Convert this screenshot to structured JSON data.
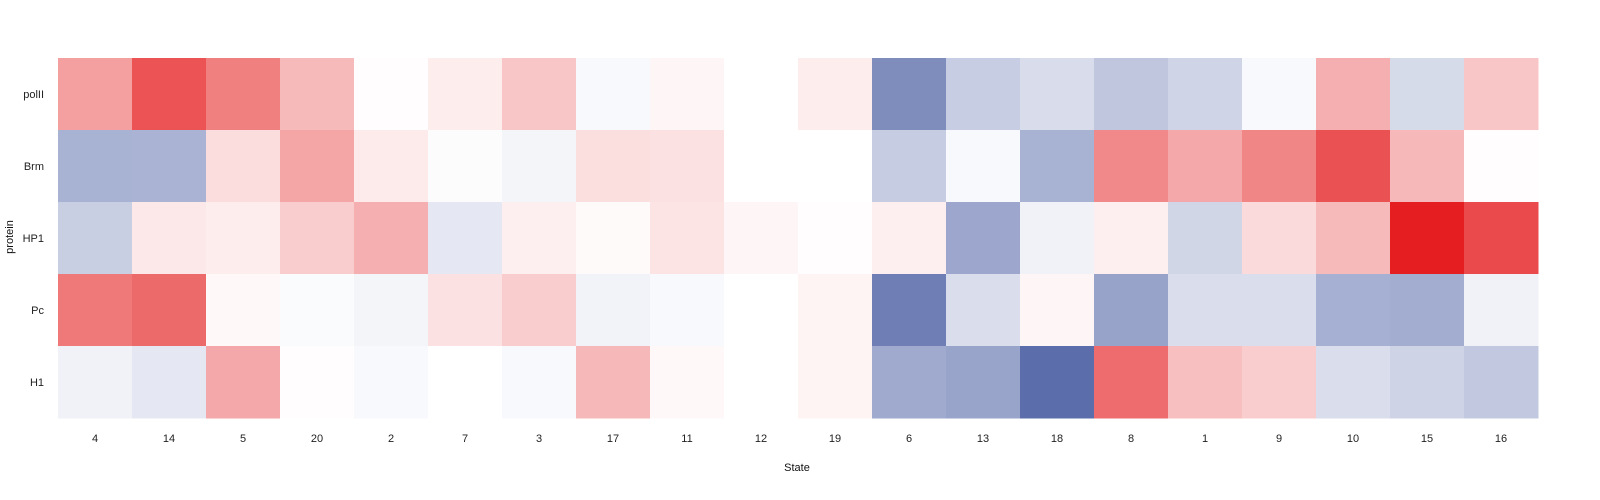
{
  "chart_data": {
    "type": "heatmap",
    "title": "",
    "xlabel": "State",
    "ylabel": "protein",
    "x_categories": [
      "4",
      "14",
      "5",
      "20",
      "2",
      "7",
      "3",
      "17",
      "11",
      "12",
      "19",
      "6",
      "13",
      "18",
      "8",
      "1",
      "9",
      "10",
      "15",
      "16"
    ],
    "y_categories": [
      "polII",
      "Brm",
      "HP1",
      "Pc",
      "H1"
    ],
    "color_scale": {
      "low": "#5b6dab",
      "mid": "#ffffff",
      "high": "#e41a1c",
      "domain": [
        -1,
        0,
        1
      ]
    },
    "values": [
      [
        0.42,
        0.75,
        0.56,
        0.3,
        0.01,
        0.08,
        0.25,
        -0.04,
        0.04,
        0.0,
        0.08,
        -0.78,
        -0.34,
        -0.24,
        -0.39,
        -0.29,
        -0.04,
        0.35,
        -0.25,
        0.25
      ],
      [
        -0.53,
        -0.52,
        0.15,
        0.39,
        0.09,
        -0.02,
        -0.07,
        0.14,
        0.13,
        0.0,
        0.0,
        -0.35,
        -0.04,
        -0.53,
        0.52,
        0.38,
        0.53,
        0.76,
        0.31,
        0.01
      ],
      [
        -0.33,
        0.1,
        0.08,
        0.22,
        0.35,
        -0.16,
        0.07,
        0.02,
        0.12,
        0.04,
        0.01,
        0.07,
        -0.6,
        -0.09,
        0.07,
        -0.28,
        0.16,
        0.3,
        0.98,
        0.79
      ],
      [
        0.59,
        0.65,
        0.03,
        -0.03,
        -0.07,
        0.13,
        0.22,
        -0.08,
        -0.04,
        0.0,
        0.05,
        -0.88,
        -0.23,
        0.04,
        -0.63,
        -0.23,
        -0.23,
        -0.54,
        -0.56,
        -0.09
      ],
      [
        -0.09,
        -0.16,
        0.38,
        0.01,
        -0.04,
        0.0,
        -0.04,
        0.31,
        0.03,
        0.0,
        0.05,
        -0.58,
        -0.62,
        -1.0,
        0.64,
        0.28,
        0.22,
        -0.23,
        -0.3,
        -0.38
      ]
    ],
    "legend": "none",
    "grid": false
  }
}
